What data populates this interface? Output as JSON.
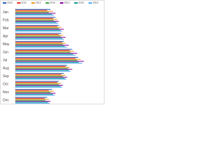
{
  "chart_data": {
    "type": "hbar",
    "categories": [
      "Jan",
      "Feb",
      "Mar",
      "Apr",
      "May",
      "Jun",
      "Jul",
      "Aug",
      "Sep",
      "Oct",
      "Nov",
      "Dec"
    ],
    "series": [
      {
        "name": "2010",
        "color": "#4472c4",
        "values": [
          42,
          48,
          52,
          55,
          58,
          68,
          75,
          62,
          58,
          52,
          44,
          38
        ]
      },
      {
        "name": "2011",
        "color": "#e8473c",
        "values": [
          38,
          45,
          50,
          52,
          56,
          65,
          72,
          60,
          55,
          50,
          40,
          35
        ]
      },
      {
        "name": "2012",
        "color": "#f4a53a",
        "values": [
          45,
          50,
          55,
          57,
          60,
          70,
          78,
          65,
          60,
          55,
          46,
          40
        ]
      },
      {
        "name": "2013",
        "color": "#4caf50",
        "values": [
          40,
          46,
          52,
          54,
          57,
          66,
          74,
          63,
          57,
          52,
          42,
          36
        ]
      },
      {
        "name": "2014",
        "color": "#9c27b0",
        "values": [
          48,
          52,
          58,
          60,
          64,
          74,
          82,
          68,
          62,
          57,
          48,
          42
        ]
      },
      {
        "name": "2015",
        "color": "#26a69a",
        "values": [
          44,
          49,
          54,
          56,
          59,
          69,
          76,
          64,
          59,
          54,
          45,
          39
        ]
      },
      {
        "name": "2016",
        "color": "#64b5f6",
        "values": [
          46,
          51,
          56,
          58,
          62,
          72,
          80,
          66,
          61,
          56,
          47,
          41
        ]
      }
    ],
    "xlim": [
      0,
      100
    ]
  }
}
